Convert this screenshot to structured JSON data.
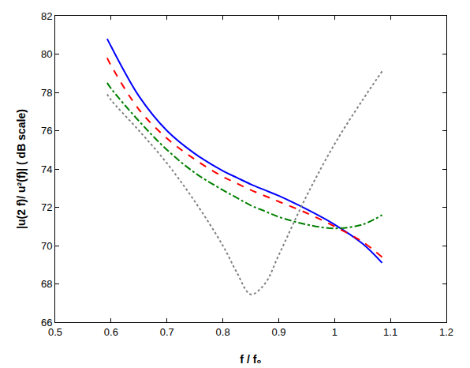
{
  "chart_data": {
    "type": "line",
    "x_label": "f / f₀",
    "y_label": "|u(2 f)/ u²(f)| ( dB scale)",
    "x": [
      0.593,
      0.6,
      0.65,
      0.7,
      0.75,
      0.8,
      0.825,
      0.85,
      0.875,
      0.9,
      0.95,
      1.0,
      1.05,
      1.085
    ],
    "series": [
      {
        "color": "#0000ff",
        "line_style": "solid",
        "values": [
          80.8,
          80.4,
          77.8,
          76.0,
          74.8,
          73.9,
          73.55,
          73.2,
          72.9,
          72.6,
          71.9,
          71.1,
          70.1,
          69.1
        ]
      },
      {
        "color": "#ff0000",
        "line_style": "dash",
        "values": [
          79.8,
          79.4,
          77.1,
          75.6,
          74.5,
          73.6,
          73.25,
          72.9,
          72.6,
          72.3,
          71.7,
          71.0,
          70.2,
          69.4
        ]
      },
      {
        "color": "#008000",
        "line_style": "dashdot",
        "values": [
          78.5,
          78.2,
          76.5,
          75.0,
          73.8,
          72.9,
          72.5,
          72.1,
          71.8,
          71.5,
          71.1,
          70.9,
          71.1,
          71.6
        ]
      },
      {
        "color": "#808080",
        "line_style": "dot",
        "values": [
          77.9,
          77.6,
          76.0,
          74.3,
          72.3,
          70.0,
          68.6,
          67.45,
          68.0,
          69.5,
          72.6,
          75.3,
          77.6,
          79.1
        ]
      }
    ],
    "xlim": [
      0.5,
      1.2
    ],
    "xticks": [
      0.5,
      0.6,
      0.7,
      0.8,
      0.9,
      1,
      1.1,
      1.2
    ],
    "ylim": [
      66,
      82
    ],
    "yticks": [
      66,
      68,
      70,
      72,
      74,
      76,
      78,
      80,
      82
    ],
    "grid": false
  }
}
